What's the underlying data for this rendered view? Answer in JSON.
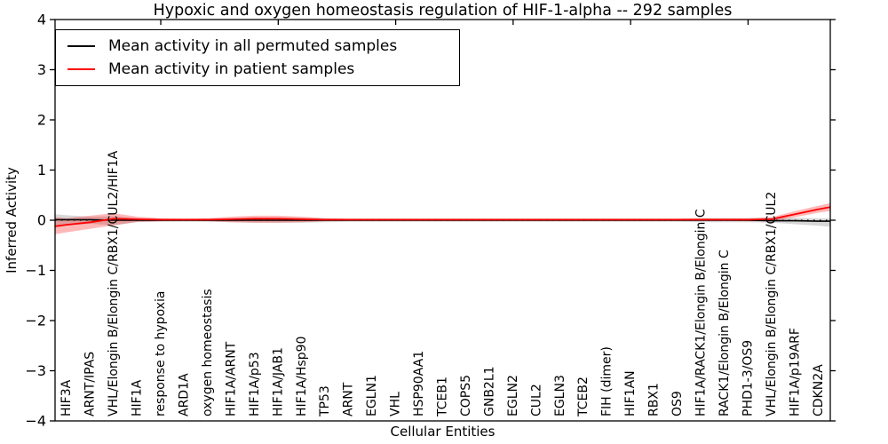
{
  "figure_title": "Hypoxic and oxygen homeostasis regulation of HIF-1-alpha -- 292 samples",
  "chart_data": {
    "type": "line",
    "title": "Hypoxic and oxygen homeostasis regulation of HIF-1-alpha -- 292 samples",
    "xlabel": "Cellular Entities",
    "ylabel": "Inferred Activity",
    "ylim": [
      -4,
      4
    ],
    "yticks": [
      -4,
      -3,
      -2,
      -1,
      0,
      1,
      2,
      3,
      4
    ],
    "grid": false,
    "legend_position": "upper left",
    "x_tick_label_rotation": 90,
    "top_tick_start_index": 4,
    "top_tick_step": 5,
    "zero_line": {
      "style": "dotted",
      "color": "#000000",
      "y": 0
    },
    "categories": [
      "HIF3A",
      "ARNT/IPAS",
      "VHL/Elongin B/Elongin C/RBX1/CUL2/HIF1A",
      "HIF1A",
      "response to hypoxia",
      "ARD1A",
      "oxygen homeostasis",
      "HIF1A/ARNT",
      "HIF1A/p53",
      "HIF1A/JAB1",
      "HIF1A/Hsp90",
      "TP53",
      "ARNT",
      "EGLN1",
      "VHL",
      "HSP90AA1",
      "TCEB1",
      "COPS5",
      "GNB2L1",
      "EGLN2",
      "CUL2",
      "EGLN3",
      "TCEB2",
      "FIH (dimer)",
      "HIF1AN",
      "RBX1",
      "OS9",
      "HIF1A/RACK1/Elongin B/Elongin C",
      "RACK1/Elongin B/Elongin C",
      "PHD1-3/OS9",
      "VHL/Elongin B/Elongin C/RBX1/CUL2",
      "HIF1A/p19ARF",
      "CDKN2A"
    ],
    "series": [
      {
        "name": "Mean activity in all permuted samples",
        "color": "#000000",
        "band_color": "rgba(110,110,110,0.28)",
        "values": [
          0.01,
          0.01,
          0,
          0,
          0,
          0,
          0,
          0,
          0,
          0,
          0,
          0,
          0,
          0,
          0,
          0,
          0,
          0,
          0,
          0,
          0,
          0,
          0,
          0,
          0,
          0,
          0,
          0,
          0,
          0,
          -0.01,
          -0.01,
          -0.02
        ],
        "band_upper": [
          0.1,
          0.07,
          0.08,
          0.04,
          0.03,
          0.03,
          0.03,
          0.04,
          0.05,
          0.05,
          0.05,
          0.04,
          0.03,
          0.03,
          0.03,
          0.03,
          0.03,
          0.03,
          0.03,
          0.03,
          0.03,
          0.03,
          0.03,
          0.03,
          0.03,
          0.03,
          0.03,
          0.04,
          0.04,
          0.04,
          0.05,
          0.05,
          0.04
        ],
        "band_lower": [
          -0.1,
          -0.07,
          -0.1,
          -0.04,
          -0.03,
          -0.03,
          -0.03,
          -0.04,
          -0.05,
          -0.05,
          -0.05,
          -0.04,
          -0.03,
          -0.03,
          -0.03,
          -0.03,
          -0.03,
          -0.03,
          -0.03,
          -0.03,
          -0.03,
          -0.03,
          -0.03,
          -0.03,
          -0.03,
          -0.03,
          -0.03,
          -0.04,
          -0.04,
          -0.04,
          -0.05,
          -0.08,
          -0.11
        ],
        "edge_left": {
          "value": 0.01,
          "upper": 0.12,
          "lower": -0.12
        },
        "edge_right": {
          "value": -0.02,
          "upper": 0.04,
          "lower": -0.13
        }
      },
      {
        "name": "Mean activity in patient samples",
        "color": "#ff0000",
        "band_color": "rgba(255,0,0,0.28)",
        "values": [
          -0.09,
          -0.04,
          0.03,
          0.02,
          0.01,
          0.01,
          0.01,
          0.02,
          0.03,
          0.03,
          0.02,
          0.01,
          0.01,
          0.01,
          0.01,
          0.01,
          0.01,
          0.01,
          0.01,
          0.01,
          0.01,
          0.01,
          0.01,
          0.01,
          0.01,
          0.01,
          0.01,
          0.01,
          0.01,
          0.01,
          0.02,
          0.12,
          0.22
        ],
        "band_upper": [
          0.04,
          0.09,
          0.14,
          0.07,
          0.04,
          0.03,
          0.04,
          0.07,
          0.09,
          0.09,
          0.07,
          0.04,
          0.03,
          0.03,
          0.03,
          0.03,
          0.03,
          0.03,
          0.03,
          0.03,
          0.03,
          0.03,
          0.03,
          0.03,
          0.03,
          0.03,
          0.03,
          0.04,
          0.04,
          0.04,
          0.06,
          0.18,
          0.29
        ],
        "band_lower": [
          -0.24,
          -0.17,
          -0.1,
          -0.03,
          -0.02,
          -0.01,
          -0.02,
          -0.04,
          -0.05,
          -0.05,
          -0.04,
          -0.02,
          -0.01,
          -0.01,
          -0.01,
          -0.01,
          -0.01,
          -0.01,
          -0.01,
          -0.01,
          -0.01,
          -0.01,
          -0.01,
          -0.01,
          -0.01,
          -0.01,
          -0.01,
          -0.01,
          -0.01,
          -0.02,
          -0.02,
          0.06,
          0.15
        ],
        "edge_left": {
          "value": -0.12,
          "upper": 0.06,
          "lower": -0.28
        },
        "edge_right": {
          "value": 0.26,
          "upper": 0.34,
          "lower": 0.18
        }
      }
    ]
  }
}
